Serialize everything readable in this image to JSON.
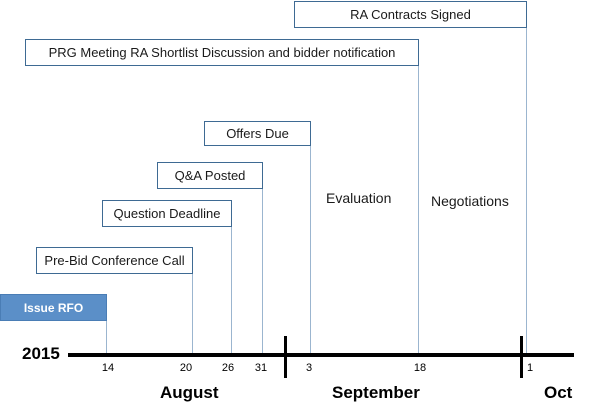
{
  "year": "2015",
  "months": [
    "August",
    "September",
    "Oct"
  ],
  "ticks": [
    "14",
    "20",
    "26",
    "31",
    "3",
    "18",
    "1"
  ],
  "milestones": [
    "Issue RFO",
    "Pre-Bid Conference Call",
    "Question Deadline",
    "Q&A Posted",
    "Offers Due",
    "PRG Meeting RA Shortlist Discussion and bidder notification",
    "RA Contracts Signed"
  ],
  "phases": [
    "Evaluation",
    "Negotiations"
  ]
}
